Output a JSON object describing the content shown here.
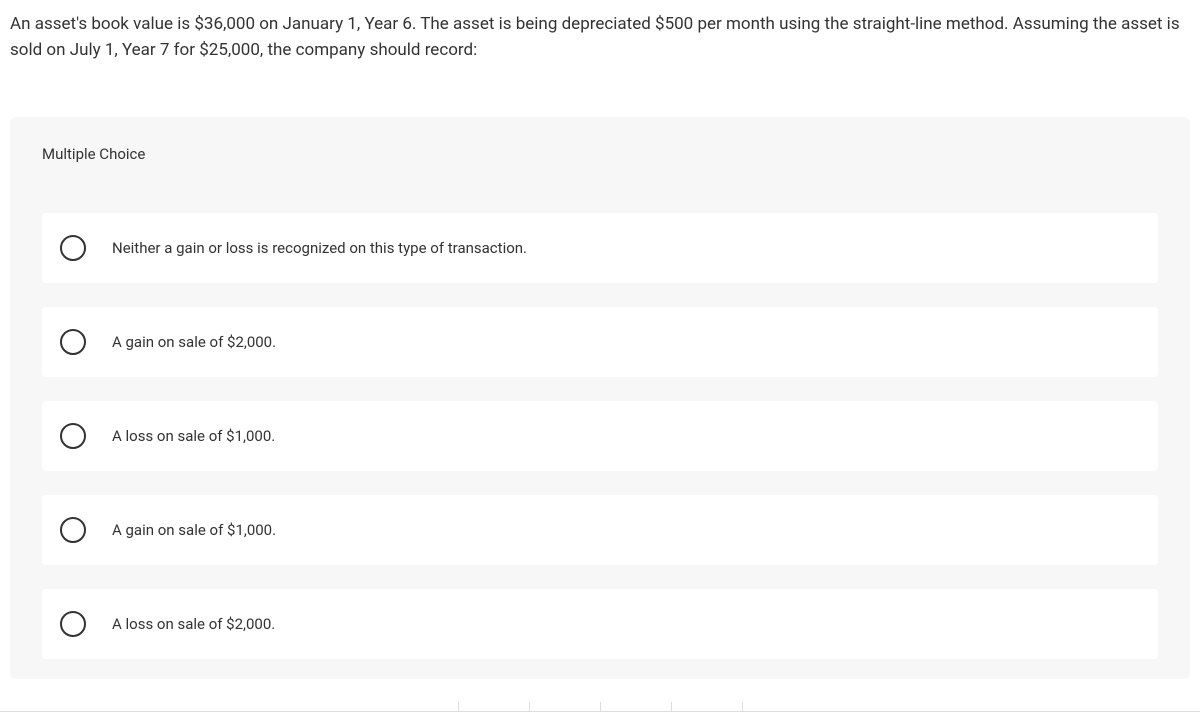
{
  "question": {
    "text": "An asset's book value is $36,000 on January 1, Year 6. The asset is being depreciated $500 per month using the straight-line method. Assuming the asset is sold on July 1, Year 7 for $25,000, the company should record:"
  },
  "section": {
    "label": "Multiple Choice"
  },
  "options": [
    {
      "text": "Neither a gain or loss is recognized on this type of transaction."
    },
    {
      "text": "A gain on sale of $2,000."
    },
    {
      "text": "A loss on sale of $1,000."
    },
    {
      "text": "A gain on sale of $1,000."
    },
    {
      "text": "A loss on sale of $2,000."
    }
  ],
  "colors": {
    "background": "#ffffff",
    "section_background": "#f7f7f7",
    "option_background": "#ffffff",
    "text": "#333333",
    "radio_border": "#333333",
    "divider": "#dddddd"
  }
}
